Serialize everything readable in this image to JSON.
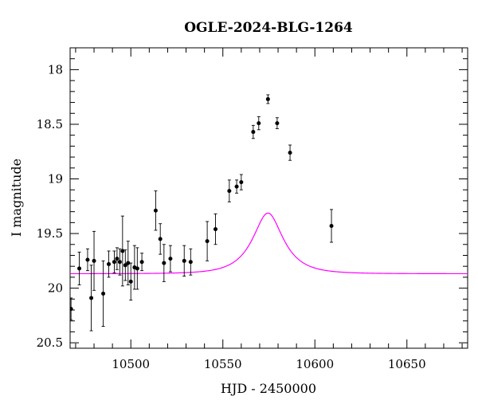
{
  "chart_data": {
    "type": "scatter",
    "title": "OGLE-2024-BLG-1264",
    "xlabel": "HJD - 2450000",
    "ylabel": "I magnitude",
    "xlim": [
      10467,
      10683
    ],
    "ylim": [
      20.55,
      17.8
    ],
    "y_inverted": true,
    "xticks": [
      "10500",
      "10550",
      "10600",
      "10650"
    ],
    "yticks": [
      "18",
      "18.5",
      "19",
      "19.5",
      "20",
      "20.5"
    ],
    "grid": false,
    "legend": "none",
    "colors": {
      "points": "#000000",
      "model": "#ff00ff"
    },
    "series": [
      {
        "kind": "points_with_errorbars",
        "x": [
          467.5,
          472,
          476.5,
          478.5,
          480,
          485,
          488,
          491,
          492.5,
          494,
          495.5,
          497,
          498.5,
          500,
          502,
          503.5,
          506,
          513.5,
          516,
          518,
          521.5,
          529,
          532.5,
          541.5,
          546,
          553.5,
          557.5,
          560,
          566.5,
          569.5,
          574.5,
          579.5,
          586.5,
          609
        ],
        "y": [
          20.19,
          19.82,
          19.74,
          20.09,
          19.75,
          20.05,
          19.78,
          19.76,
          19.73,
          19.76,
          19.66,
          19.79,
          19.77,
          19.94,
          19.81,
          19.82,
          19.76,
          19.29,
          19.55,
          19.77,
          19.73,
          19.75,
          19.76,
          19.57,
          19.46,
          19.11,
          19.07,
          19.03,
          18.57,
          18.49,
          18.27,
          18.49,
          18.76,
          19.43
        ],
        "yerr": [
          0.1,
          0.15,
          0.1,
          0.3,
          0.27,
          0.3,
          0.12,
          0.1,
          0.1,
          0.12,
          0.32,
          0.14,
          0.2,
          0.17,
          0.2,
          0.19,
          0.08,
          0.18,
          0.14,
          0.17,
          0.12,
          0.14,
          0.12,
          0.18,
          0.14,
          0.1,
          0.06,
          0.07,
          0.06,
          0.06,
          0.04,
          0.05,
          0.07,
          0.15
        ]
      },
      {
        "kind": "model_curve",
        "t0": 574.5,
        "u0": 0.52,
        "tE": 14.8,
        "fs": 0.6,
        "baseline_mag": 19.868
      }
    ]
  }
}
